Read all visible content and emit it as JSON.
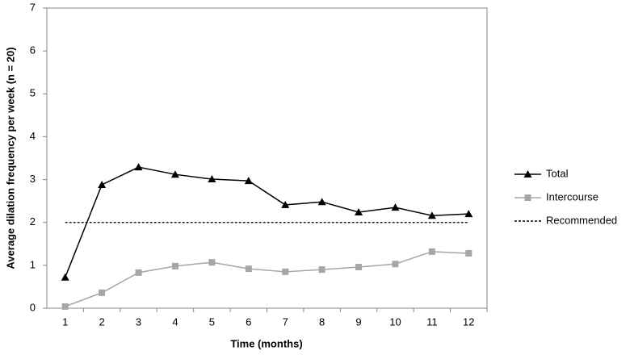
{
  "chart_data": {
    "type": "line",
    "x_label": "Time (months)",
    "y_label": "Average dilation frequency per week (n = 20)",
    "categories": [
      "1",
      "2",
      "3",
      "4",
      "5",
      "6",
      "7",
      "8",
      "9",
      "10",
      "11",
      "12"
    ],
    "series": [
      {
        "name": "Total",
        "color": "#000000",
        "marker": "triangle",
        "dashed": false,
        "values": [
          0.72,
          2.88,
          3.29,
          3.12,
          3.01,
          2.97,
          2.41,
          2.48,
          2.24,
          2.35,
          2.16,
          2.2
        ]
      },
      {
        "name": "Intercourse",
        "color": "#a6a6a6",
        "marker": "square",
        "dashed": false,
        "values": [
          0.04,
          0.36,
          0.83,
          0.98,
          1.07,
          0.92,
          0.85,
          0.9,
          0.96,
          1.03,
          1.32,
          1.28
        ]
      },
      {
        "name": "Recommended",
        "color": "#000000",
        "marker": "none",
        "dashed": true,
        "values": [
          2,
          2,
          2,
          2,
          2,
          2,
          2,
          2,
          2,
          2,
          2,
          2
        ]
      }
    ],
    "ylim": [
      0,
      7
    ],
    "yticks": [
      0,
      1,
      2,
      3,
      4,
      5,
      6,
      7
    ],
    "grid": false,
    "legend": "right"
  }
}
